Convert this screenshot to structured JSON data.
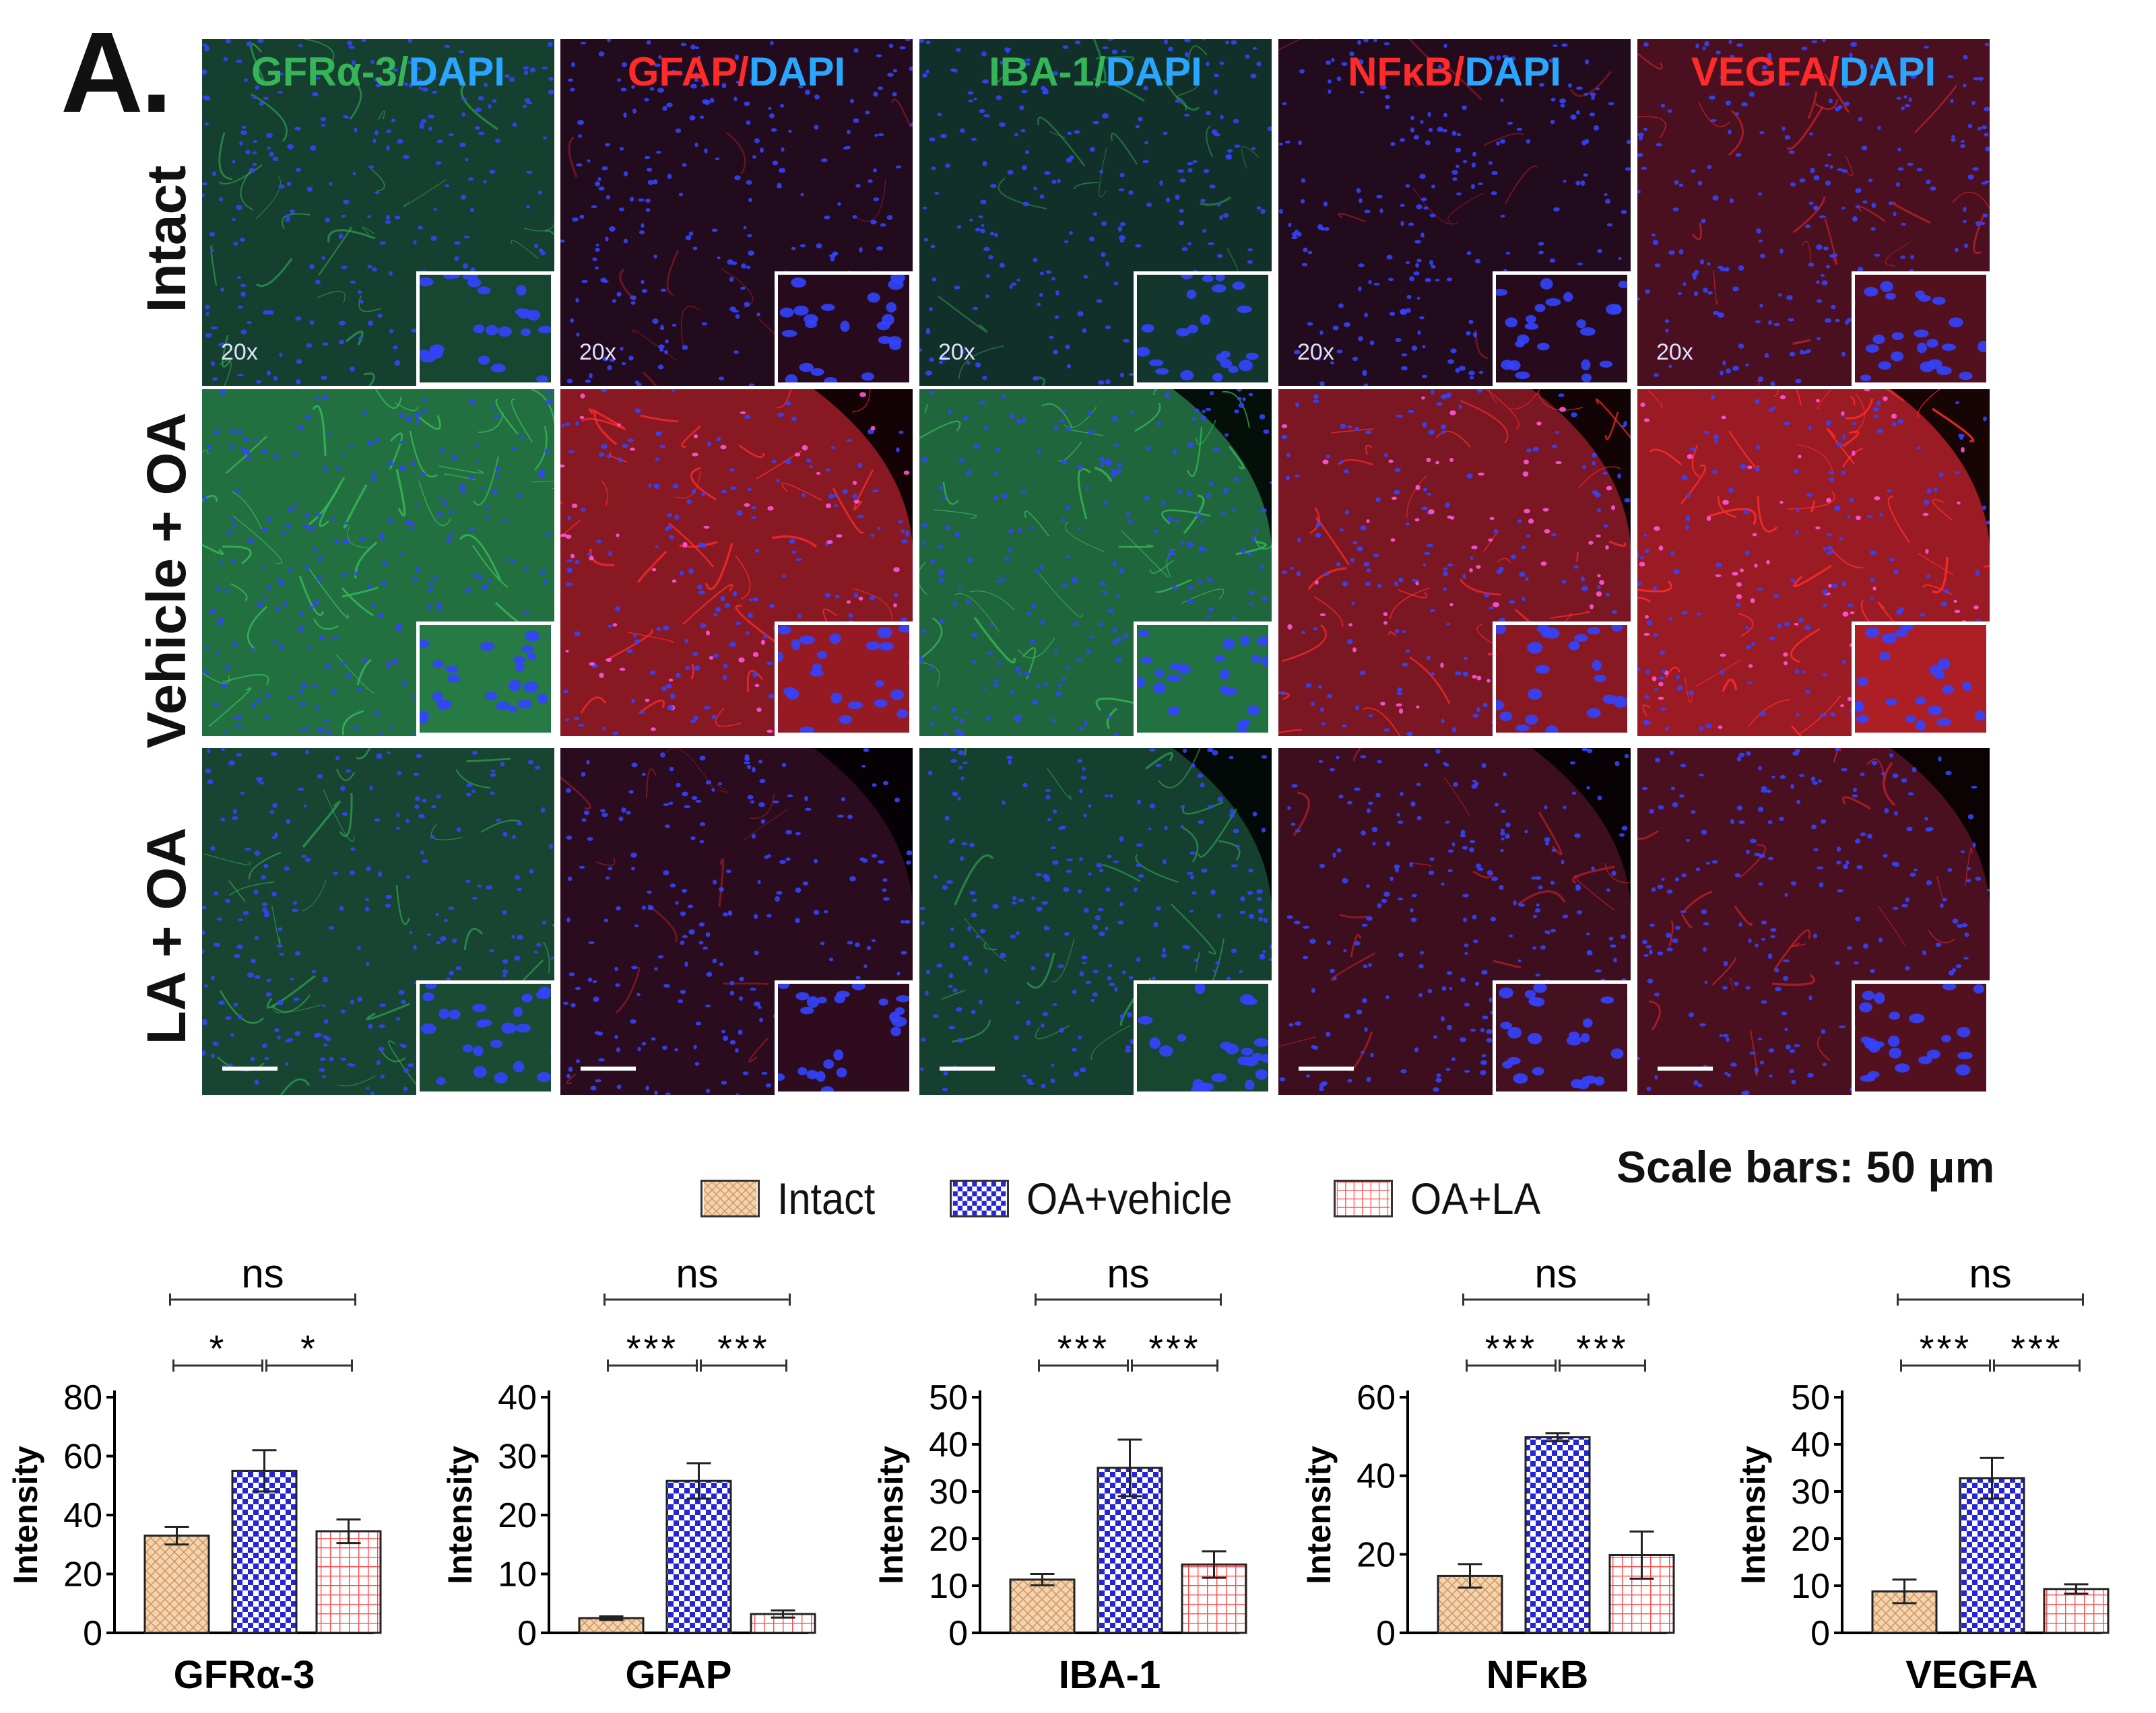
{
  "panel_label": "A.",
  "rows": [
    "Intact",
    "Vehicle + OA",
    "LA + OA"
  ],
  "stains": [
    {
      "marker": "GFRα-3",
      "sep": "/",
      "counter": "DAPI",
      "marker_color": "green",
      "sep_color": "green"
    },
    {
      "marker": "GFAP",
      "sep": "/",
      "counter": "DAPI",
      "marker_color": "red",
      "sep_color": "red"
    },
    {
      "marker": "IBA-1",
      "sep": "/",
      "counter": "DAPI",
      "marker_color": "green",
      "sep_color": "green"
    },
    {
      "marker": "NFκB",
      "sep": "/",
      "counter": "DAPI",
      "marker_color": "red",
      "sep_color": "red"
    },
    {
      "marker": "VEGFA",
      "sep": "/",
      "counter": "DAPI",
      "marker_color": "red",
      "sep_color": "red"
    }
  ],
  "magnification_label": "20x",
  "scale_caption": "Scale bars: 50 μm",
  "legend": [
    {
      "label": "Intact",
      "color": "#f6c89a",
      "pattern": "crosshatch-tan"
    },
    {
      "label": "OA+vehicle",
      "color": "#2222dd",
      "pattern": "checker-blue"
    },
    {
      "label": "OA+LA",
      "color": "#ff5a5a",
      "pattern": "grid-red"
    }
  ],
  "colors": {
    "green_stain": "#35b558",
    "red_stain": "#ff2a2a",
    "dapi": "#2aa6ff"
  },
  "chart_data": [
    {
      "type": "bar",
      "categories": [
        "Intact",
        "OA+vehicle",
        "OA+LA"
      ],
      "values": [
        33,
        55,
        34.5
      ],
      "errors": [
        3,
        7,
        4
      ],
      "xlabel": "GFRα-3",
      "ylabel": "Intensity",
      "ylim": [
        0,
        80
      ],
      "yticks": [
        0,
        20,
        40,
        60,
        80
      ],
      "annotations": [
        {
          "from": 0,
          "to": 2,
          "label": "ns",
          "level": 2
        },
        {
          "from": 0,
          "to": 1,
          "label": "*",
          "level": 1
        },
        {
          "from": 1,
          "to": 2,
          "label": "*",
          "level": 1
        }
      ]
    },
    {
      "type": "bar",
      "categories": [
        "Intact",
        "OA+vehicle",
        "OA+LA"
      ],
      "values": [
        2.5,
        25.8,
        3.2
      ],
      "errors": [
        0.3,
        3,
        0.6
      ],
      "xlabel": "GFAP",
      "ylabel": "Intensity",
      "ylim": [
        0,
        40
      ],
      "yticks": [
        0,
        10,
        20,
        30,
        40
      ],
      "annotations": [
        {
          "from": 0,
          "to": 2,
          "label": "ns",
          "level": 2
        },
        {
          "from": 0,
          "to": 1,
          "label": "***",
          "level": 1
        },
        {
          "from": 1,
          "to": 2,
          "label": "***",
          "level": 1
        }
      ]
    },
    {
      "type": "bar",
      "categories": [
        "Intact",
        "OA+vehicle",
        "OA+LA"
      ],
      "values": [
        11.3,
        35,
        14.5
      ],
      "errors": [
        1.2,
        6,
        2.8
      ],
      "xlabel": "IBA-1",
      "ylabel": "Intensity",
      "ylim": [
        0,
        50
      ],
      "yticks": [
        0,
        10,
        20,
        30,
        40,
        50
      ],
      "annotations": [
        {
          "from": 0,
          "to": 2,
          "label": "ns",
          "level": 2
        },
        {
          "from": 0,
          "to": 1,
          "label": "***",
          "level": 1
        },
        {
          "from": 1,
          "to": 2,
          "label": "***",
          "level": 1
        }
      ]
    },
    {
      "type": "bar",
      "categories": [
        "Intact",
        "OA+vehicle",
        "OA+LA"
      ],
      "values": [
        14.5,
        49.8,
        19.8
      ],
      "errors": [
        3,
        1,
        6
      ],
      "xlabel": "NFκB",
      "ylabel": "Intensity",
      "ylim": [
        0,
        60
      ],
      "yticks": [
        0,
        20,
        40,
        60
      ],
      "annotations": [
        {
          "from": 0,
          "to": 2,
          "label": "ns",
          "level": 2
        },
        {
          "from": 0,
          "to": 1,
          "label": "***",
          "level": 1
        },
        {
          "from": 1,
          "to": 2,
          "label": "***",
          "level": 1
        }
      ]
    },
    {
      "type": "bar",
      "categories": [
        "Intact",
        "OA+vehicle",
        "OA+LA"
      ],
      "values": [
        8.8,
        32.8,
        9.3
      ],
      "errors": [
        2.5,
        4.3,
        1
      ],
      "xlabel": "VEGFA",
      "ylabel": "Intensity",
      "ylim": [
        0,
        50
      ],
      "yticks": [
        0,
        10,
        20,
        30,
        40,
        50
      ],
      "annotations": [
        {
          "from": 0,
          "to": 2,
          "label": "ns",
          "level": 2
        },
        {
          "from": 0,
          "to": 1,
          "label": "***",
          "level": 1
        },
        {
          "from": 1,
          "to": 2,
          "label": "***",
          "level": 1
        }
      ]
    }
  ]
}
